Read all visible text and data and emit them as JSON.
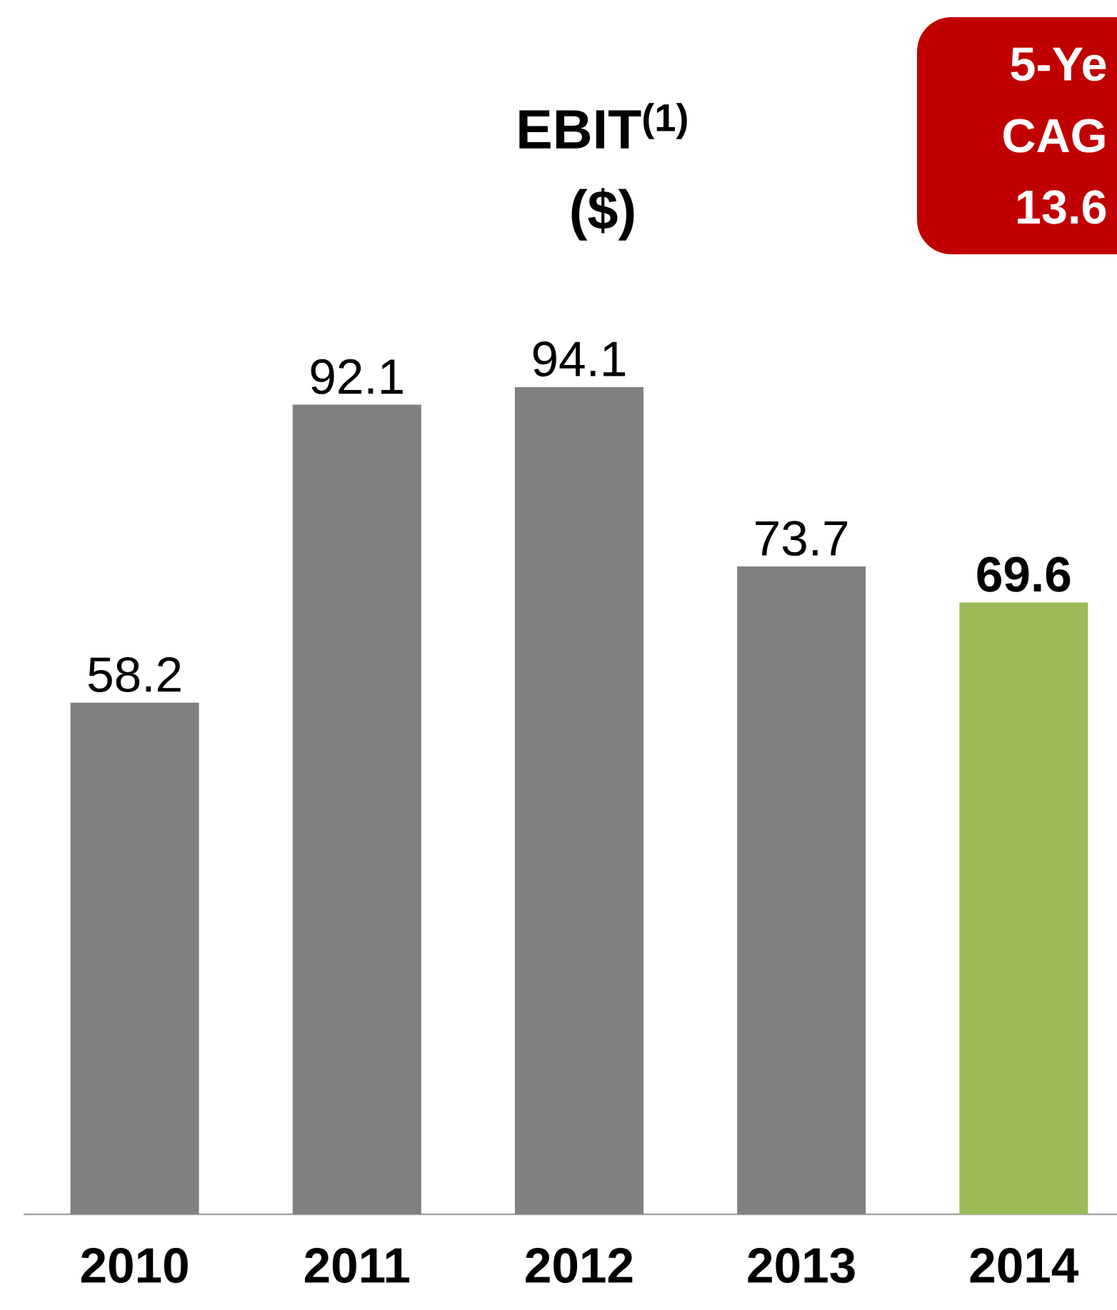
{
  "chart_data": {
    "type": "bar",
    "title": "EBIT$^{(1)}$",
    "subtitle": "($)",
    "categories": [
      "2010",
      "2011",
      "2012",
      "2013",
      "2014"
    ],
    "values": [
      58.2,
      92.1,
      94.1,
      73.7,
      69.6
    ],
    "colors": [
      "#808080",
      "#808080",
      "#808080",
      "#808080",
      "#9bbb59"
    ],
    "tick_labels": "x",
    "data_labels": true,
    "annotations": [
      "5-Ye",
      "CAG",
      "13.6"
    ]
  }
}
